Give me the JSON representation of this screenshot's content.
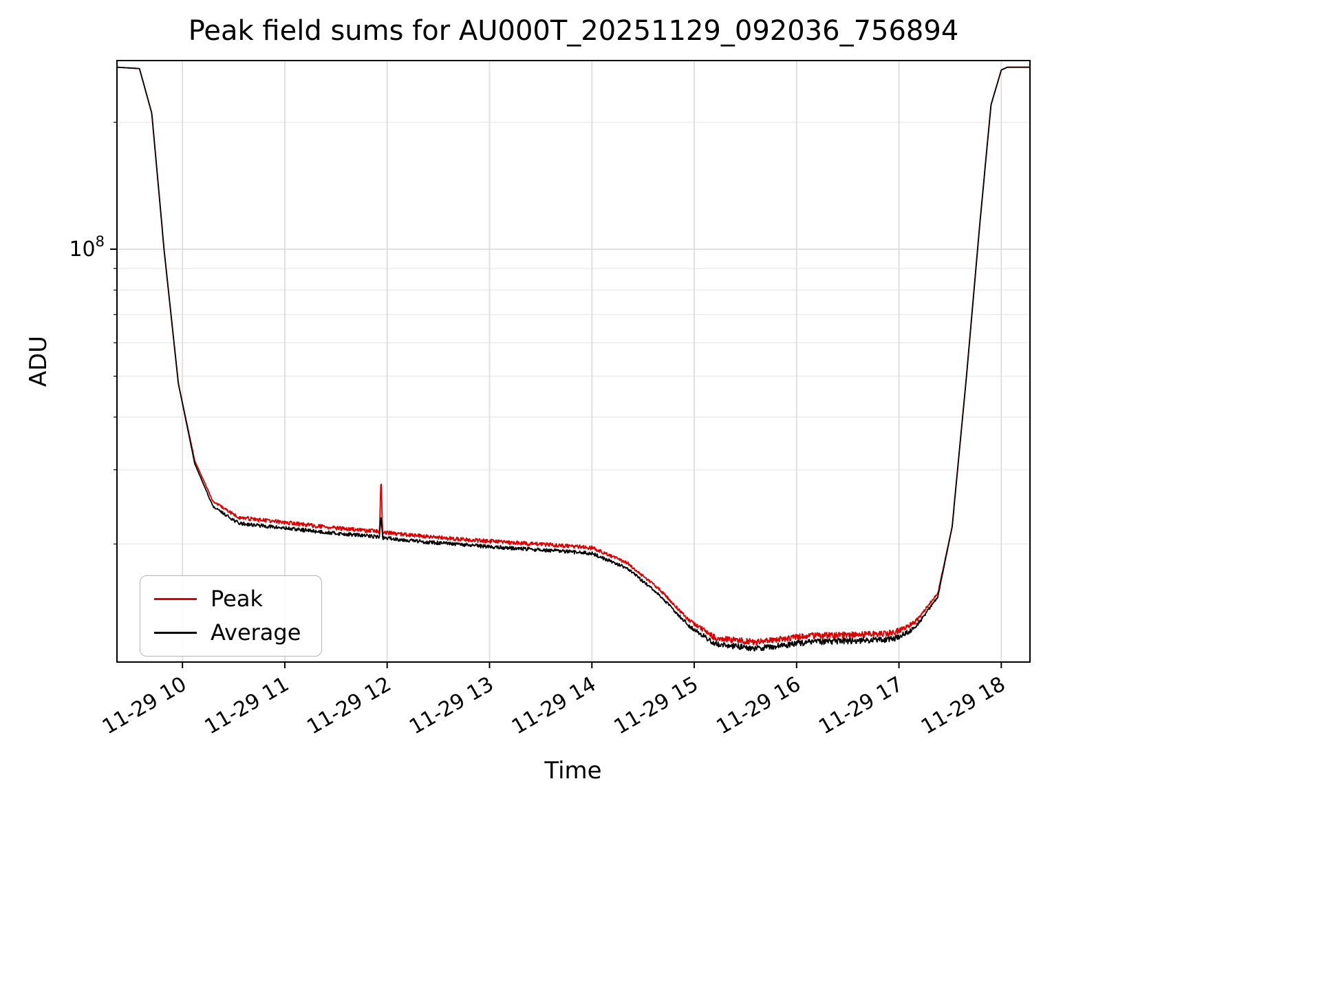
{
  "chart_data": {
    "type": "line",
    "title": "Peak field sums for AU000T_20251129_092036_756894",
    "xlabel": "Time",
    "ylabel": "ADU",
    "y_scale": "log",
    "grid": true,
    "legend_position": "lower left",
    "x_range": [
      9.36,
      18.28
    ],
    "y_range": [
      10500000.0,
      280000000.0
    ],
    "x_ticks": [
      {
        "value": 10,
        "label": "11-29 10"
      },
      {
        "value": 11,
        "label": "11-29 11"
      },
      {
        "value": 12,
        "label": "11-29 12"
      },
      {
        "value": 13,
        "label": "11-29 13"
      },
      {
        "value": 14,
        "label": "11-29 14"
      },
      {
        "value": 15,
        "label": "11-29 15"
      },
      {
        "value": 16,
        "label": "11-29 16"
      },
      {
        "value": 17,
        "label": "11-29 17"
      },
      {
        "value": 18,
        "label": "11-29 18"
      }
    ],
    "y_major_ticks": [
      {
        "value": 100000000.0,
        "base": "10",
        "exp": "8"
      }
    ],
    "y_minor_ticks": [
      20000000.0,
      30000000.0,
      40000000.0,
      50000000.0,
      60000000.0,
      70000000.0,
      80000000.0,
      90000000.0,
      200000000.0
    ],
    "series": [
      {
        "name": "Peak",
        "color": "#dd0000",
        "noise_seed": 77,
        "points": [
          [
            9.36,
            270000000.0,
            0
          ],
          [
            9.58,
            268000000.0,
            0
          ],
          [
            9.7,
            210000000.0,
            0
          ],
          [
            9.82,
            100000000.0,
            0
          ],
          [
            9.96,
            48000000.0,
            0
          ],
          [
            10.12,
            31500000.0,
            0
          ],
          [
            10.3,
            25200000.0,
            0.005
          ],
          [
            10.55,
            23100000.0,
            0.011
          ],
          [
            11.0,
            22500000.0,
            0.011
          ],
          [
            11.5,
            21800000.0,
            0.011
          ],
          [
            11.925,
            21400000.0,
            0.011
          ],
          [
            11.94,
            29000000.0,
            0
          ],
          [
            11.955,
            21300000.0,
            0.011
          ],
          [
            12.4,
            20800000.0,
            0.011
          ],
          [
            13.0,
            20300000.0,
            0.011
          ],
          [
            13.6,
            19900000.0,
            0.011
          ],
          [
            14.0,
            19600000.0,
            0.011
          ],
          [
            14.35,
            18000000.0,
            0.008
          ],
          [
            14.65,
            15700000.0,
            0.008
          ],
          [
            14.95,
            13200000.0,
            0.01
          ],
          [
            15.2,
            12000000.0,
            0.017
          ],
          [
            15.6,
            11700000.0,
            0.017
          ],
          [
            16.1,
            12100000.0,
            0.017
          ],
          [
            16.6,
            12200000.0,
            0.017
          ],
          [
            16.95,
            12300000.0,
            0.017
          ],
          [
            17.15,
            13000000.0,
            0.012
          ],
          [
            17.38,
            15300000.0,
            0.005
          ],
          [
            17.52,
            22000000.0,
            0
          ],
          [
            17.66,
            50000000.0,
            0
          ],
          [
            17.79,
            115000000.0,
            0
          ],
          [
            17.9,
            220000000.0,
            0
          ],
          [
            18.0,
            266000000.0,
            0
          ],
          [
            18.06,
            270000000.0,
            0
          ],
          [
            18.28,
            270000000.0,
            0
          ]
        ]
      },
      {
        "name": "Average",
        "color": "#000000",
        "noise_seed": 13,
        "points": [
          [
            9.36,
            270000000.0,
            0
          ],
          [
            9.58,
            268000000.0,
            0
          ],
          [
            9.7,
            210000000.0,
            0
          ],
          [
            9.82,
            100000000.0,
            0
          ],
          [
            9.96,
            48000000.0,
            0
          ],
          [
            10.12,
            31000000.0,
            0
          ],
          [
            10.3,
            24500000.0,
            0.005
          ],
          [
            10.55,
            22400000.0,
            0.01
          ],
          [
            11.0,
            21800000.0,
            0.01
          ],
          [
            11.5,
            21200000.0,
            0.01
          ],
          [
            11.925,
            20800000.0,
            0.01
          ],
          [
            11.94,
            23500000.0,
            0
          ],
          [
            11.955,
            20700000.0,
            0.01
          ],
          [
            12.4,
            20200000.0,
            0.01
          ],
          [
            13.0,
            19700000.0,
            0.01
          ],
          [
            13.6,
            19300000.0,
            0.01
          ],
          [
            14.0,
            19000000.0,
            0.01
          ],
          [
            14.35,
            17500000.0,
            0.008
          ],
          [
            14.65,
            15200000.0,
            0.008
          ],
          [
            14.95,
            12800000.0,
            0.01
          ],
          [
            15.2,
            11600000.0,
            0.016
          ],
          [
            15.6,
            11300000.0,
            0.016
          ],
          [
            16.1,
            11700000.0,
            0.016
          ],
          [
            16.6,
            11800000.0,
            0.016
          ],
          [
            16.95,
            11900000.0,
            0.016
          ],
          [
            17.15,
            12600000.0,
            0.012
          ],
          [
            17.38,
            15000000.0,
            0.005
          ],
          [
            17.52,
            22000000.0,
            0
          ],
          [
            17.66,
            50000000.0,
            0
          ],
          [
            17.79,
            115000000.0,
            0
          ],
          [
            17.9,
            220000000.0,
            0
          ],
          [
            18.0,
            266000000.0,
            0
          ],
          [
            18.06,
            270000000.0,
            0
          ],
          [
            18.28,
            270000000.0,
            0
          ]
        ]
      }
    ]
  }
}
